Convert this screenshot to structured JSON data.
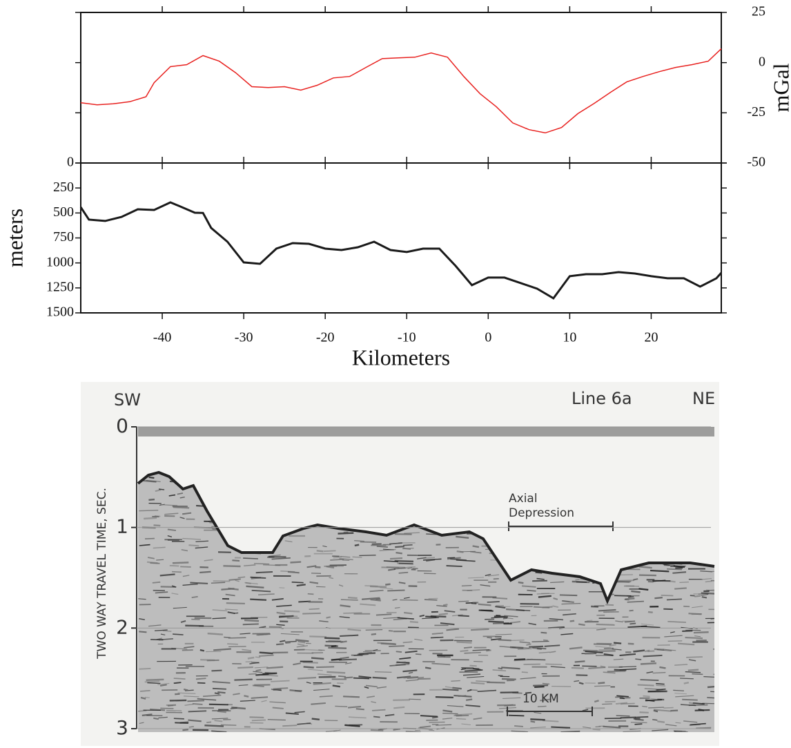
{
  "chart_data": [
    {
      "type": "line",
      "ylabel": "mGal",
      "x": [
        -50,
        -48,
        -46,
        -44,
        -42,
        -41,
        -39,
        -37,
        -35,
        -33,
        -31,
        -29,
        -27,
        -25,
        -23,
        -21,
        -19,
        -17,
        -15,
        -13,
        -11,
        -9,
        -7,
        -5,
        -3,
        -1,
        1,
        3,
        5,
        7,
        9,
        11,
        13,
        15,
        17,
        19,
        21,
        23,
        25,
        27,
        28.6
      ],
      "series": [
        {
          "color": "#e8201e",
          "values": [
            -20,
            -21,
            -20.5,
            -19.5,
            -17,
            -10,
            -2,
            -1,
            3.5,
            0.7,
            -5,
            -12,
            -12.4,
            -12,
            -13.7,
            -11.3,
            -7.6,
            -6.9,
            -2.4,
            2,
            2.4,
            2.7,
            4.8,
            2.7,
            -6.9,
            -15.5,
            -22,
            -30,
            -33.4,
            -35,
            -32.3,
            -25.4,
            -20.3,
            -14.8,
            -9.6,
            -6.9,
            -4.5,
            -2.4,
            -1,
            0.7,
            6.9
          ]
        }
      ],
      "ylim": [
        -50,
        25
      ],
      "yticks": [
        -50,
        -25,
        0,
        25
      ]
    },
    {
      "type": "line",
      "ylabel": "meters",
      "xlabel": "Kilometers",
      "x": [
        -50,
        -49,
        -47,
        -45,
        -43,
        -41,
        -39,
        -38,
        -36,
        -35,
        -34,
        -32,
        -30,
        -28,
        -26,
        -24,
        -22,
        -20,
        -18,
        -16,
        -14,
        -12,
        -10,
        -8,
        -6,
        -4,
        -2,
        0,
        2,
        4,
        6,
        8,
        10,
        12,
        14,
        16,
        18,
        20,
        22,
        24,
        26,
        28,
        28.6
      ],
      "series": [
        {
          "color": "#1a1a1a",
          "values": [
            442,
            567,
            580,
            540,
            463,
            470,
            394,
            428,
            498,
            500,
            650,
            788,
            995,
            1009,
            857,
            802,
            809,
            857,
            871,
            843,
            788,
            871,
            891,
            857,
            857,
            1030,
            1223,
            1147,
            1147,
            1202,
            1258,
            1354,
            1133,
            1113,
            1113,
            1092,
            1106,
            1133,
            1154,
            1154,
            1237,
            1154,
            1099
          ]
        }
      ],
      "xlim": [
        -50,
        28.6
      ],
      "xticks": [
        -40,
        -30,
        -20,
        -10,
        0,
        10,
        20
      ],
      "ylim": [
        1500,
        0
      ],
      "yticks": [
        0,
        250,
        500,
        750,
        1000,
        1250,
        1500
      ]
    },
    {
      "type": "seismic",
      "left_label": "SW",
      "line_label": "Line 6a",
      "right_label": "NE",
      "ylabel": "TWO WAY TRAVEL TIME, SEC.",
      "annotation": [
        "Axial",
        "Depression"
      ],
      "scale_label": "10 KM",
      "ylim": [
        3,
        0
      ],
      "yticks": [
        0,
        1,
        2,
        3
      ]
    }
  ]
}
